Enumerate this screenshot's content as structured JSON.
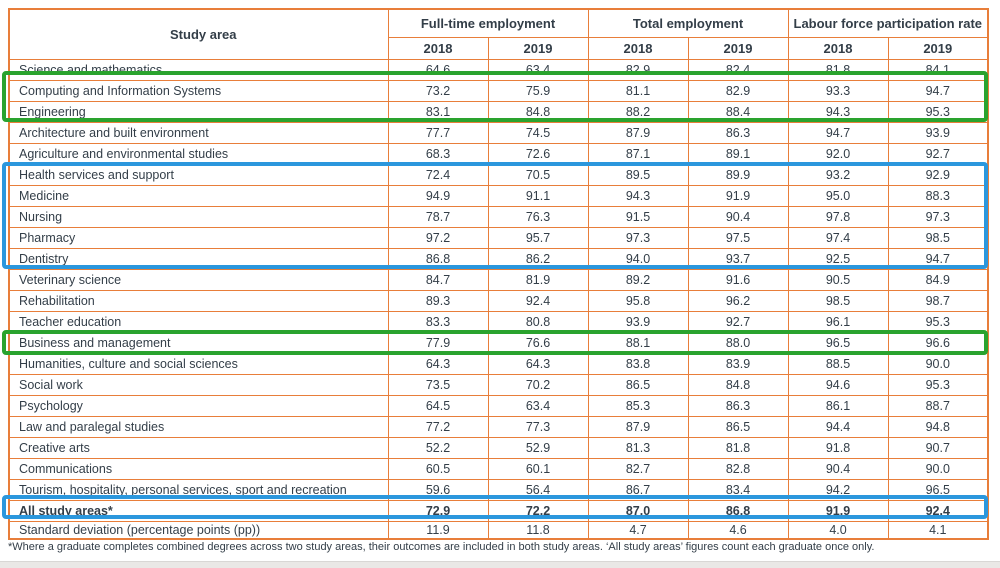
{
  "colors": {
    "table_border_orange": "#e87e3a",
    "text": "#333e48",
    "highlight_green": "#2aa32e",
    "highlight_blue": "#2b97dd",
    "bottom_strip_bg": "#eae8e6",
    "bottom_strip_border": "#d9d7d5"
  },
  "chart_data": {
    "type": "table",
    "row_header": "Study area",
    "column_groups": [
      {
        "label": "Full-time employment",
        "years": [
          "2018",
          "2019"
        ]
      },
      {
        "label": "Total employment",
        "years": [
          "2018",
          "2019"
        ]
      },
      {
        "label": "Labour force participation rate",
        "years": [
          "2018",
          "2019"
        ]
      }
    ],
    "rows": [
      {
        "label": "Science and mathematics",
        "values": [
          "64.6",
          "63.4",
          "82.9",
          "82.4",
          "81.8",
          "84.1"
        ],
        "bold": false
      },
      {
        "label": "Computing and Information Systems",
        "values": [
          "73.2",
          "75.9",
          "81.1",
          "82.9",
          "93.3",
          "94.7"
        ],
        "bold": false
      },
      {
        "label": "Engineering",
        "values": [
          "83.1",
          "84.8",
          "88.2",
          "88.4",
          "94.3",
          "95.3"
        ],
        "bold": false
      },
      {
        "label": "Architecture and built environment",
        "values": [
          "77.7",
          "74.5",
          "87.9",
          "86.3",
          "94.7",
          "93.9"
        ],
        "bold": false
      },
      {
        "label": "Agriculture and environmental studies",
        "values": [
          "68.3",
          "72.6",
          "87.1",
          "89.1",
          "92.0",
          "92.7"
        ],
        "bold": false
      },
      {
        "label": "Health services and support",
        "values": [
          "72.4",
          "70.5",
          "89.5",
          "89.9",
          "93.2",
          "92.9"
        ],
        "bold": false
      },
      {
        "label": "Medicine",
        "values": [
          "94.9",
          "91.1",
          "94.3",
          "91.9",
          "95.0",
          "88.3"
        ],
        "bold": false
      },
      {
        "label": "Nursing",
        "values": [
          "78.7",
          "76.3",
          "91.5",
          "90.4",
          "97.8",
          "97.3"
        ],
        "bold": false
      },
      {
        "label": "Pharmacy",
        "values": [
          "97.2",
          "95.7",
          "97.3",
          "97.5",
          "97.4",
          "98.5"
        ],
        "bold": false
      },
      {
        "label": "Dentistry",
        "values": [
          "86.8",
          "86.2",
          "94.0",
          "93.7",
          "92.5",
          "94.7"
        ],
        "bold": false
      },
      {
        "label": "Veterinary science",
        "values": [
          "84.7",
          "81.9",
          "89.2",
          "91.6",
          "90.5",
          "84.9"
        ],
        "bold": false
      },
      {
        "label": "Rehabilitation",
        "values": [
          "89.3",
          "92.4",
          "95.8",
          "96.2",
          "98.5",
          "98.7"
        ],
        "bold": false
      },
      {
        "label": "Teacher education",
        "values": [
          "83.3",
          "80.8",
          "93.9",
          "92.7",
          "96.1",
          "95.3"
        ],
        "bold": false
      },
      {
        "label": "Business and management",
        "values": [
          "77.9",
          "76.6",
          "88.1",
          "88.0",
          "96.5",
          "96.6"
        ],
        "bold": false
      },
      {
        "label": "Humanities, culture and social sciences",
        "values": [
          "64.3",
          "64.3",
          "83.8",
          "83.9",
          "88.5",
          "90.0"
        ],
        "bold": false
      },
      {
        "label": "Social work",
        "values": [
          "73.5",
          "70.2",
          "86.5",
          "84.8",
          "94.6",
          "95.3"
        ],
        "bold": false
      },
      {
        "label": "Psychology",
        "values": [
          "64.5",
          "63.4",
          "85.3",
          "86.3",
          "86.1",
          "88.7"
        ],
        "bold": false
      },
      {
        "label": "Law and paralegal studies",
        "values": [
          "77.2",
          "77.3",
          "87.9",
          "86.5",
          "94.4",
          "94.8"
        ],
        "bold": false
      },
      {
        "label": "Creative arts",
        "values": [
          "52.2",
          "52.9",
          "81.3",
          "81.8",
          "91.8",
          "90.7"
        ],
        "bold": false
      },
      {
        "label": "Communications",
        "values": [
          "60.5",
          "60.1",
          "82.7",
          "82.8",
          "90.4",
          "90.0"
        ],
        "bold": false
      },
      {
        "label": "Tourism, hospitality, personal services, sport and recreation",
        "values": [
          "59.6",
          "56.4",
          "86.7",
          "83.4",
          "94.2",
          "96.5"
        ],
        "bold": false
      },
      {
        "label": "All study areas*",
        "values": [
          "72.9",
          "72.2",
          "87.0",
          "86.8",
          "91.9",
          "92.4"
        ],
        "bold": true
      },
      {
        "label": "Standard deviation (percentage points (pp))",
        "values": [
          "11.9",
          "11.8",
          "4.7",
          "4.6",
          "4.0",
          "4.1"
        ],
        "bold": false
      }
    ],
    "footnote": "*Where a graduate completes combined degrees across two study areas, their outcomes are included in both study areas. ‘All study areas’ figures count each graduate once only.",
    "highlights": [
      {
        "color": "green",
        "start_label": "Computing and Information Systems",
        "end_label": "Engineering"
      },
      {
        "color": "blue",
        "start_label": "Health services and support",
        "end_label": "Dentistry"
      },
      {
        "color": "green",
        "start_label": "Business and management",
        "end_label": "Business and management"
      },
      {
        "color": "blue",
        "start_label": "All study areas*",
        "end_label": "All study areas*"
      }
    ]
  }
}
